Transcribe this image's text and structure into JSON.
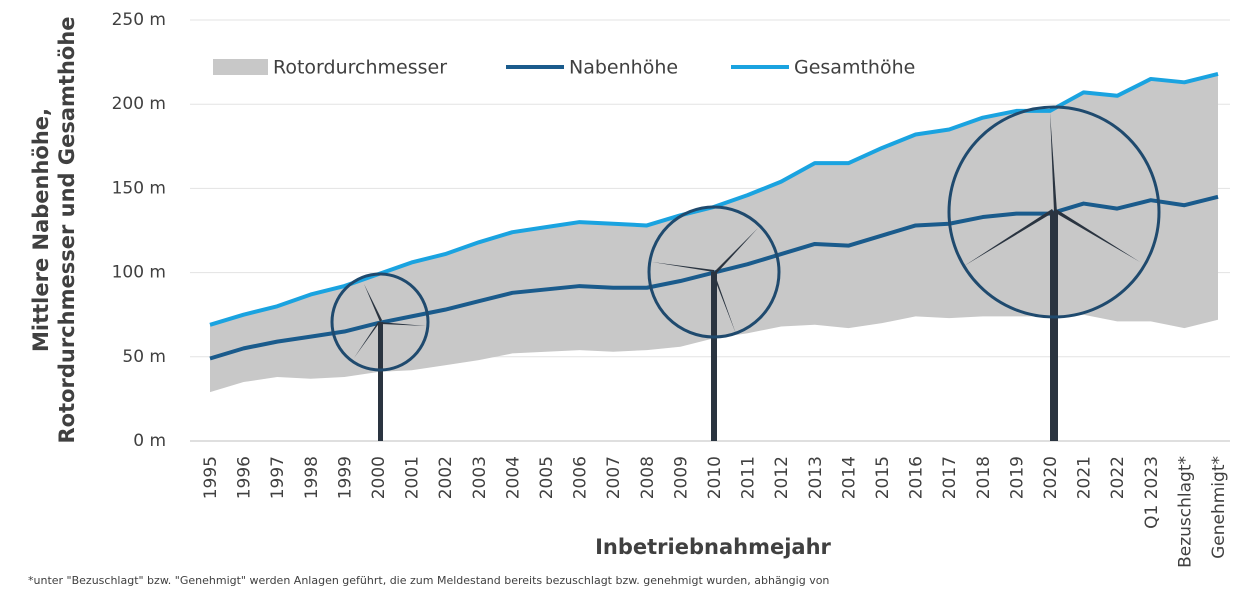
{
  "chart_data": {
    "type": "line",
    "x_label": "Inbetriebnahmejahr",
    "y_label": [
      "Mittlere Nabenhöhe,",
      "Rotordurchmesser und Gesamthöhe"
    ],
    "footnote": "*unter \"Bezuschlagt\" bzw. \"Genehmigt\" werden Anlagen geführt, die zum Meldestand bereits bezuschlagt bzw. genehmigt wurden, abhängig von",
    "categories": [
      "1995",
      "1996",
      "1997",
      "1998",
      "1999",
      "2000",
      "2001",
      "2002",
      "2003",
      "2004",
      "2005",
      "2006",
      "2007",
      "2008",
      "2009",
      "2010",
      "2011",
      "2012",
      "2013",
      "2014",
      "2015",
      "2016",
      "2017",
      "2018",
      "2019",
      "2020",
      "2021",
      "2022",
      "Q1 2023",
      "Bezuschlagt*",
      "Genehmigt*"
    ],
    "series": [
      {
        "name": "Rotordurchmesser",
        "color": "#c8c8c8",
        "style": "band",
        "values": [
          40,
          40,
          42,
          50,
          54,
          58,
          64,
          66,
          70,
          72,
          74,
          76,
          76,
          74,
          78,
          78,
          82,
          86,
          96,
          98,
          104,
          108,
          112,
          118,
          122,
          122,
          132,
          134,
          144,
          146,
          146
        ]
      },
      {
        "name": "Nabenhöhe",
        "color": "#1a5b8c",
        "values": [
          49,
          55,
          59,
          62,
          65,
          70,
          74,
          78,
          83,
          88,
          90,
          92,
          91,
          91,
          95,
          100,
          105,
          111,
          117,
          116,
          122,
          128,
          129,
          133,
          135,
          135,
          141,
          138,
          143,
          140,
          145
        ]
      },
      {
        "name": "Gesamthöhe",
        "color": "#1aa3e0",
        "values": [
          69,
          75,
          80,
          87,
          92,
          99,
          106,
          111,
          118,
          124,
          127,
          130,
          129,
          128,
          134,
          139,
          146,
          154,
          165,
          165,
          174,
          182,
          185,
          192,
          196,
          196,
          207,
          205,
          215,
          213,
          218
        ]
      }
    ],
    "ylim": [
      0,
      250
    ],
    "yticks": [
      {
        "value": 0,
        "label": "0 m"
      },
      {
        "value": 50,
        "label": "50 m"
      },
      {
        "value": 100,
        "label": "100 m"
      },
      {
        "value": 150,
        "label": "150 m"
      },
      {
        "value": 200,
        "label": "200 m"
      },
      {
        "value": 250,
        "label": "250 m"
      }
    ],
    "grid": true,
    "legend": "top"
  }
}
